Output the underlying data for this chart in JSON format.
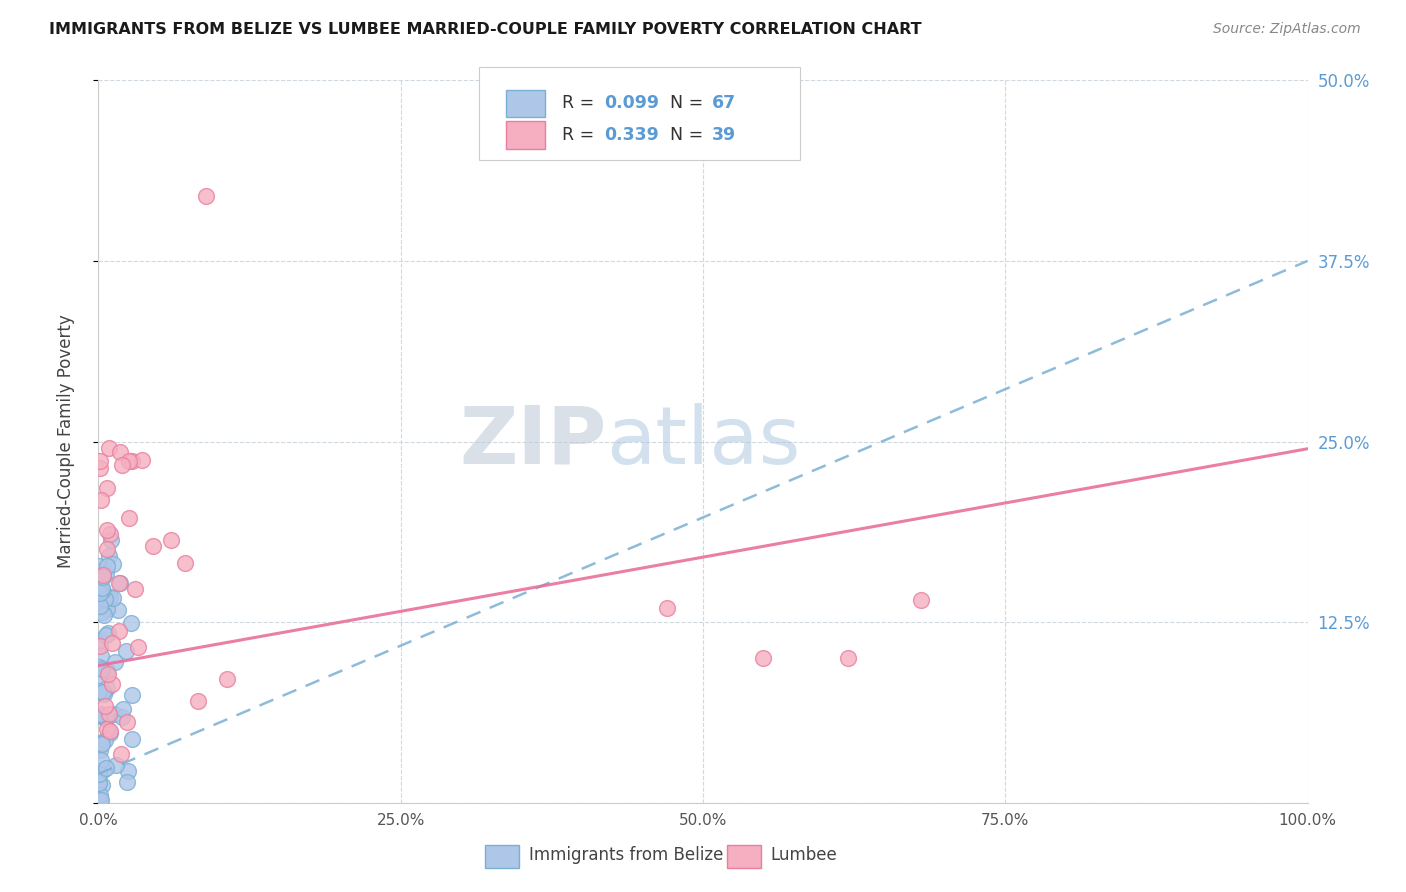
{
  "title": "IMMIGRANTS FROM BELIZE VS LUMBEE MARRIED-COUPLE FAMILY POVERTY CORRELATION CHART",
  "source": "Source: ZipAtlas.com",
  "ylabel": "Married-Couple Family Poverty",
  "xlim": [
    0.0,
    1.0
  ],
  "ylim": [
    0.0,
    0.5
  ],
  "belize_color": "#aec6e8",
  "lumbee_color": "#f5afc0",
  "belize_edge": "#7aafd4",
  "lumbee_edge": "#e87fa0",
  "trend_belize_color": "#7ab0d4",
  "trend_lumbee_color": "#e8709a",
  "legend_R_belize": "R = 0.099",
  "legend_N_belize": "N = 67",
  "legend_R_lumbee": "R = 0.339",
  "legend_N_lumbee": "N = 39",
  "watermark_zip": "ZIP",
  "watermark_atlas": "atlas",
  "background_color": "#ffffff",
  "grid_color": "#d0d8e0",
  "right_axis_color": "#5b9bd5"
}
